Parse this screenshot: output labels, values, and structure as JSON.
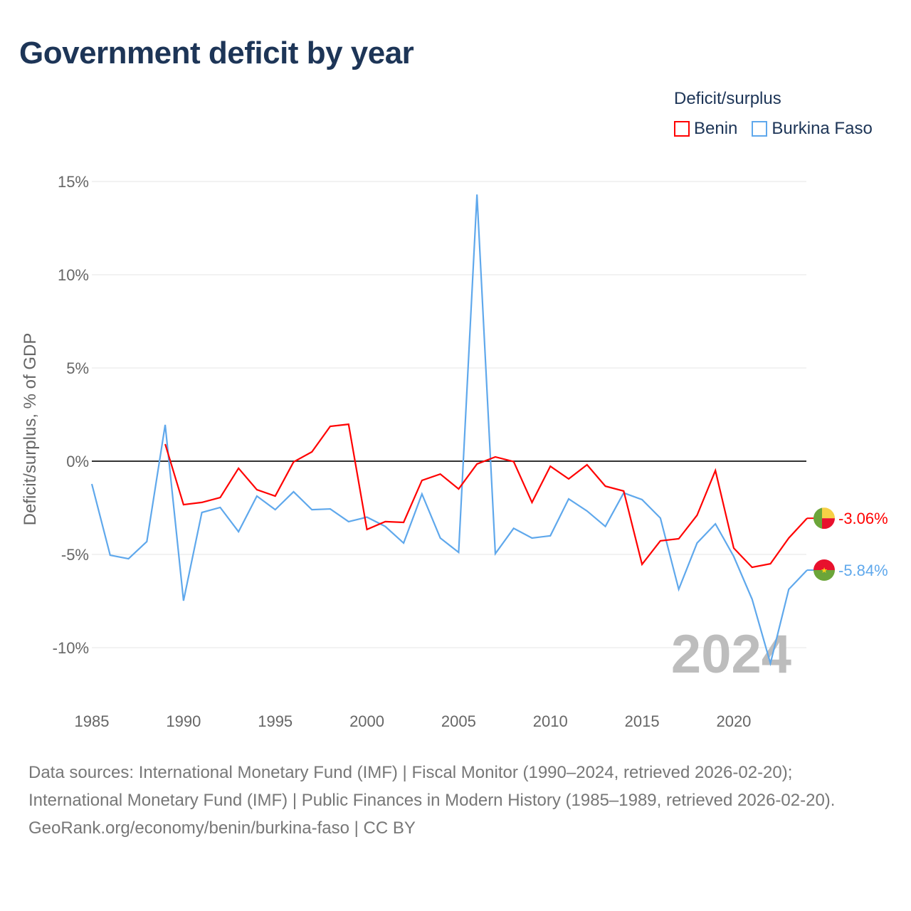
{
  "title": "Government deficit by year",
  "legend": {
    "title": "Deficit/surplus",
    "items": [
      {
        "label": "Benin",
        "color": "#ff0000"
      },
      {
        "label": "Burkina Faso",
        "color": "#5fa8ec"
      }
    ]
  },
  "year_watermark": "2024",
  "end_labels": {
    "benin": "-3.06%",
    "burkina_faso": "-5.84%"
  },
  "footer": {
    "sources": "Data sources: International Monetary Fund (IMF) | Fiscal Monitor (1990–2024, retrieved 2026-02-20); International Monetary Fund (IMF) | Public Finances in Modern History (1985–1989, retrieved 2026-02-20).",
    "attribution": "GeoRank.org/economy/benin/burkina-faso | CC BY"
  },
  "chart_data": {
    "type": "line",
    "title": "Government deficit by year",
    "xlabel": "",
    "ylabel": "Deficit/surplus, % of GDP",
    "xlim": [
      1985,
      2024
    ],
    "ylim": [
      -12,
      15
    ],
    "x_ticks": [
      1985,
      1990,
      1995,
      2000,
      2005,
      2010,
      2015,
      2020
    ],
    "y_ticks": [
      15,
      10,
      5,
      0,
      -5,
      -10
    ],
    "y_tick_labels": [
      "15%",
      "10%",
      "5%",
      "0%",
      "-5%",
      "-10%"
    ],
    "grid": true,
    "legend_position": "top-right",
    "series": [
      {
        "name": "Benin",
        "color": "#ff0000",
        "x": [
          1989,
          1990,
          1991,
          1992,
          1993,
          1994,
          1995,
          1996,
          1997,
          1998,
          1999,
          2000,
          2001,
          2002,
          2003,
          2004,
          2005,
          2006,
          2007,
          2008,
          2009,
          2010,
          2011,
          2012,
          2013,
          2014,
          2015,
          2016,
          2017,
          2018,
          2019,
          2020,
          2021,
          2022,
          2023,
          2024
        ],
        "values": [
          0.92,
          -2.33,
          -2.21,
          -1.95,
          -0.38,
          -1.53,
          -1.87,
          -0.04,
          0.5,
          1.87,
          1.98,
          -3.66,
          -3.24,
          -3.28,
          -1.03,
          -0.69,
          -1.49,
          -0.15,
          0.23,
          -0.02,
          -2.21,
          -0.27,
          -0.95,
          -0.19,
          -1.34,
          -1.6,
          -5.53,
          -4.27,
          -4.16,
          -2.9,
          -0.5,
          -4.66,
          -5.69,
          -5.5,
          -4.12,
          -3.06
        ]
      },
      {
        "name": "Burkina Faso",
        "color": "#5fa8ec",
        "x": [
          1985,
          1986,
          1987,
          1988,
          1989,
          1990,
          1991,
          1992,
          1993,
          1994,
          1995,
          1996,
          1997,
          1998,
          1999,
          2000,
          2001,
          2002,
          2003,
          2004,
          2005,
          2006,
          2007,
          2008,
          2009,
          2010,
          2011,
          2012,
          2013,
          2014,
          2015,
          2016,
          2017,
          2018,
          2019,
          2020,
          2021,
          2022,
          2023,
          2024
        ],
        "values": [
          -1.22,
          -5.04,
          -5.23,
          -4.31,
          1.95,
          -7.48,
          -2.75,
          -2.48,
          -3.78,
          -1.87,
          -2.6,
          -1.64,
          -2.6,
          -2.56,
          -3.24,
          -3.0,
          -3.5,
          -4.39,
          -1.76,
          -4.12,
          -4.89,
          14.3,
          -4.96,
          -3.6,
          -4.12,
          -4.0,
          -2.02,
          -2.67,
          -3.5,
          -1.7,
          -2.06,
          -3.05,
          -6.87,
          -4.39,
          -3.36,
          -5.11,
          -7.4,
          -10.84,
          -6.87,
          -5.84
        ]
      }
    ]
  }
}
